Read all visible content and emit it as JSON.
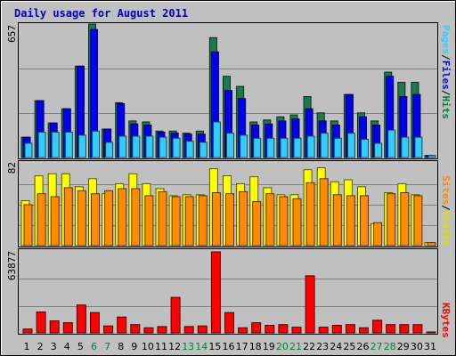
{
  "chart_data": {
    "type": "bar",
    "title": "Daily usage for August 2011",
    "categories": [
      "1",
      "2",
      "3",
      "4",
      "5",
      "6",
      "7",
      "8",
      "9",
      "10",
      "11",
      "12",
      "13",
      "14",
      "15",
      "16",
      "17",
      "18",
      "19",
      "20",
      "21",
      "22",
      "23",
      "24",
      "25",
      "26",
      "27",
      "28",
      "29",
      "30",
      "31"
    ],
    "weekend_days": [
      "6",
      "7",
      "13",
      "14",
      "20",
      "21",
      "27",
      "28"
    ],
    "panels": [
      {
        "id": "hits",
        "ymax": 657,
        "ymax_label": "657",
        "legend": [
          {
            "label": "Pages",
            "color": "#33ccff"
          },
          {
            "sep": "/",
            "color": "#000000"
          },
          {
            "label": "Files",
            "color": "#0000ff"
          },
          {
            "sep": "/",
            "color": "#000000"
          },
          {
            "label": "Hits",
            "color": "#008040"
          }
        ],
        "series": [
          {
            "name": "Hits",
            "color": "#1b7a4e",
            "values": [
              100,
              280,
              170,
              240,
              450,
              657,
              140,
              270,
              180,
              175,
              130,
              130,
              120,
              130,
              590,
              400,
              350,
              175,
              185,
              200,
              210,
              300,
              220,
              180,
              310,
              220,
              180,
              420,
              370,
              370,
              10
            ]
          },
          {
            "name": "Files",
            "color": "#0000ee",
            "values": [
              100,
              280,
              170,
              240,
              450,
              630,
              140,
              265,
              165,
              160,
              125,
              120,
              115,
              115,
              520,
              330,
              290,
              160,
              165,
              180,
              190,
              240,
              180,
              160,
              310,
              200,
              160,
              400,
              300,
              310,
              10
            ]
          },
          {
            "name": "Pages",
            "color": "#33ccff",
            "values": [
              70,
              125,
              125,
              125,
              110,
              130,
              75,
              105,
              105,
              105,
              100,
              95,
              80,
              75,
              175,
              120,
              110,
              95,
              95,
              95,
              95,
              105,
              120,
              95,
              120,
              90,
              70,
              135,
              100,
              100,
              10
            ]
          }
        ]
      },
      {
        "id": "visits",
        "ymax": 82,
        "ymax_label": "82",
        "legend": [
          {
            "label": "Sites",
            "color": "#ff8800"
          },
          {
            "sep": "/",
            "color": "#000000"
          },
          {
            "label": "Visits",
            "color": "#e0e000"
          }
        ],
        "series": [
          {
            "name": "Visits",
            "color": "#ffff00",
            "values": [
              45,
              70,
              72,
              72,
              59,
              67,
              52,
              62,
              72,
              62,
              57,
              50,
              51,
              51,
              77,
              70,
              62,
              69,
              58,
              51,
              51,
              76,
              78,
              64,
              66,
              59,
              22,
              53,
              62,
              51,
              3
            ]
          },
          {
            "name": "Sites",
            "color": "#ff8c00",
            "values": [
              41,
              52,
              49,
              58,
              55,
              52,
              55,
              57,
              57,
              50,
              54,
              49,
              49,
              50,
              53,
              52,
              54,
              44,
              52,
              49,
              47,
              63,
              67,
              51,
              50,
              50,
              23,
              52,
              53,
              50,
              3
            ]
          }
        ]
      },
      {
        "id": "kbytes",
        "ymax": 63877,
        "ymax_label": "63877",
        "legend": [
          {
            "label": "KBytes",
            "color": "#ff0000"
          }
        ],
        "series": [
          {
            "name": "KBytes",
            "color": "#ff0000",
            "values": [
              3000,
              16500,
              9500,
              8000,
              22000,
              16000,
              5500,
              12500,
              6500,
              4000,
              5000,
              28000,
              5000,
              5500,
              63877,
              16000,
              4000,
              8000,
              6000,
              6500,
              4500,
              45000,
              4500,
              6000,
              6500,
              4000,
              10000,
              6500,
              6500,
              6500,
              200
            ]
          }
        ]
      }
    ]
  }
}
